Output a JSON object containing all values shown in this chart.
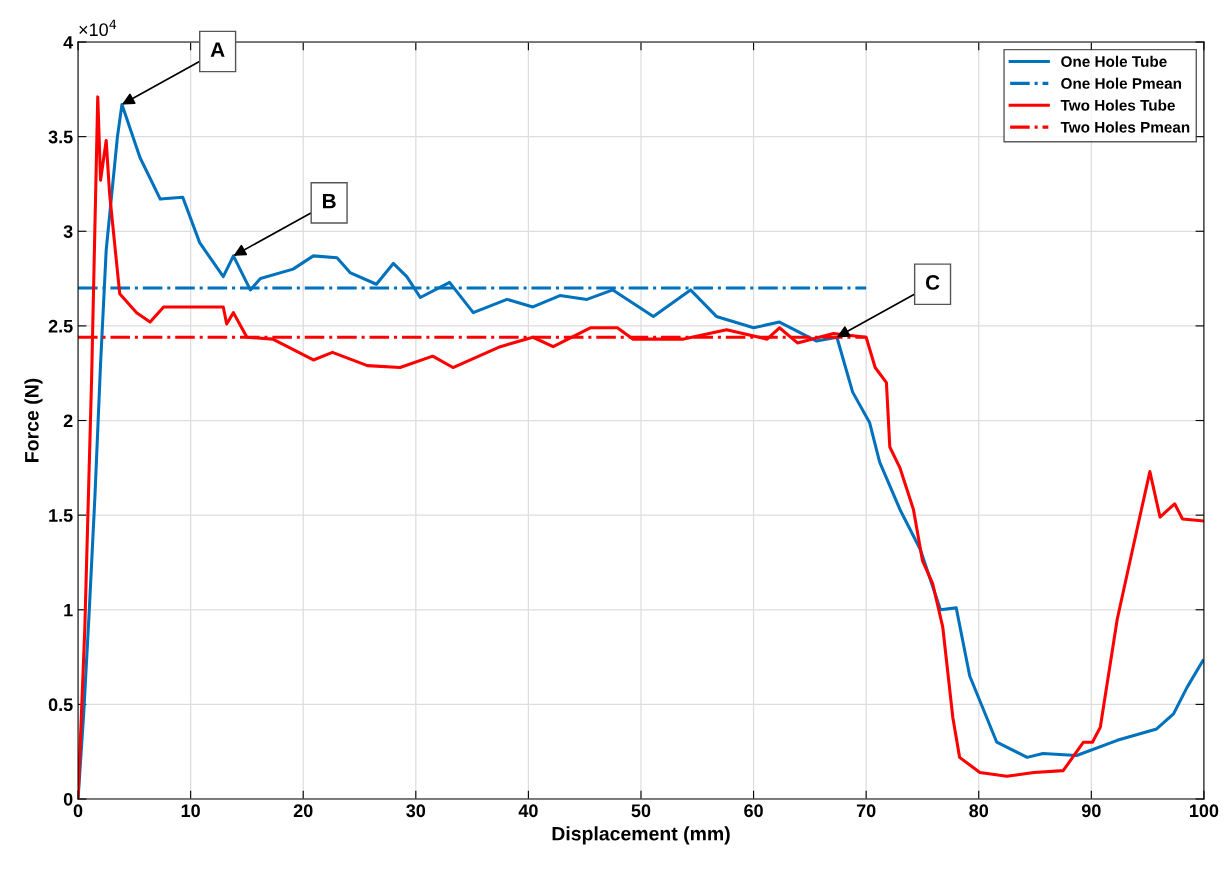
{
  "chart_data": {
    "type": "line",
    "xlabel": "Displacement (mm)",
    "ylabel": "Force (N)",
    "xlim": [
      0,
      100
    ],
    "ylim": [
      0,
      4
    ],
    "xticks": [
      0,
      10,
      20,
      30,
      40,
      50,
      60,
      70,
      80,
      90,
      100
    ],
    "yticks": [
      0,
      0.5,
      1,
      1.5,
      2,
      2.5,
      3,
      3.5,
      4
    ],
    "grid": true,
    "legend": "top right",
    "marker": "none",
    "annotations": [
      "×10$^{4}$",
      {
        "text": "A",
        "x": 3.9,
        "y": 3.67
      },
      {
        "text": "B",
        "x": 13.8,
        "y": 2.87
      },
      {
        "text": "C",
        "x": 67.4,
        "y": 2.44
      }
    ],
    "series": [
      {
        "name": "One Hole Tube",
        "color": "#0072bd",
        "line_style": "solid",
        "x": [
          0,
          0.5,
          1,
          1.5,
          2,
          2.5,
          3,
          3.5,
          3.9,
          5.5,
          7.3,
          9.3,
          10.8,
          12.9,
          13.8,
          15.3,
          16.2,
          19.1,
          20.9,
          23,
          24.2,
          26.5,
          28,
          29.2,
          30.4,
          33,
          35.1,
          38.1,
          40.4,
          42.8,
          45.2,
          47.5,
          51.1,
          54.4,
          56.7,
          60,
          62.3,
          65.6,
          67.4,
          68.8,
          70.3,
          71.2,
          73,
          74.8,
          76.6,
          78,
          79.2,
          81.6,
          84.3,
          85.7,
          88.7,
          92.3,
          95.8,
          97.3,
          98.5,
          99.9
        ],
        "values": [
          0,
          0.45,
          1.0,
          1.6,
          2.3,
          2.9,
          3.2,
          3.5,
          3.67,
          3.39,
          3.17,
          3.18,
          2.94,
          2.76,
          2.87,
          2.69,
          2.75,
          2.8,
          2.87,
          2.86,
          2.78,
          2.72,
          2.83,
          2.76,
          2.65,
          2.73,
          2.57,
          2.64,
          2.6,
          2.66,
          2.64,
          2.69,
          2.55,
          2.69,
          2.55,
          2.49,
          2.52,
          2.42,
          2.44,
          2.15,
          1.99,
          1.78,
          1.53,
          1.32,
          1.0,
          1.01,
          0.65,
          0.3,
          0.22,
          0.24,
          0.23,
          0.31,
          0.37,
          0.45,
          0.59,
          0.73
        ]
      },
      {
        "name": "One Hole Pmean",
        "color": "#0072bd",
        "line_style": "dashdot",
        "x": [
          0,
          70
        ],
        "values": [
          2.7,
          2.7
        ]
      },
      {
        "name": "Two Holes Tube",
        "color": "#ff0000",
        "line_style": "solid",
        "x": [
          0,
          0.6,
          1.2,
          1.75,
          2.0,
          2.5,
          2.8,
          3.7,
          5.2,
          6.4,
          7.6,
          10.2,
          12.9,
          13.2,
          13.8,
          15,
          17.3,
          20.9,
          22.6,
          25.7,
          28.6,
          31.5,
          33.3,
          37.5,
          40.4,
          42.2,
          45.5,
          47.9,
          49.3,
          53.7,
          57.6,
          61.2,
          62.3,
          63.9,
          67.1,
          70.0,
          70.8,
          71.8,
          72.1,
          73,
          74.2,
          75,
          75.9,
          76.8,
          77.7,
          78.3,
          80.1,
          82.5,
          84.9,
          87.5,
          89.3,
          90.1,
          90.8,
          92.3,
          94.3,
          95.2,
          96.1,
          97.4,
          98.1,
          99.9
        ],
        "values": [
          0,
          0.9,
          2.21,
          3.71,
          3.27,
          3.48,
          3.2,
          2.67,
          2.57,
          2.52,
          2.6,
          2.6,
          2.6,
          2.51,
          2.57,
          2.44,
          2.43,
          2.32,
          2.36,
          2.29,
          2.28,
          2.34,
          2.28,
          2.39,
          2.44,
          2.39,
          2.49,
          2.49,
          2.43,
          2.43,
          2.48,
          2.43,
          2.49,
          2.41,
          2.46,
          2.44,
          2.28,
          2.2,
          1.86,
          1.75,
          1.53,
          1.26,
          1.14,
          0.91,
          0.43,
          0.22,
          0.14,
          0.12,
          0.14,
          0.15,
          0.3,
          0.3,
          0.38,
          0.95,
          1.49,
          1.73,
          1.49,
          1.56,
          1.48,
          1.47
        ]
      },
      {
        "name": "Two Holes Pmean",
        "color": "#ff0000",
        "line_style": "dashdot",
        "x": [
          0,
          70
        ],
        "values": [
          2.44,
          2.44
        ]
      }
    ]
  }
}
